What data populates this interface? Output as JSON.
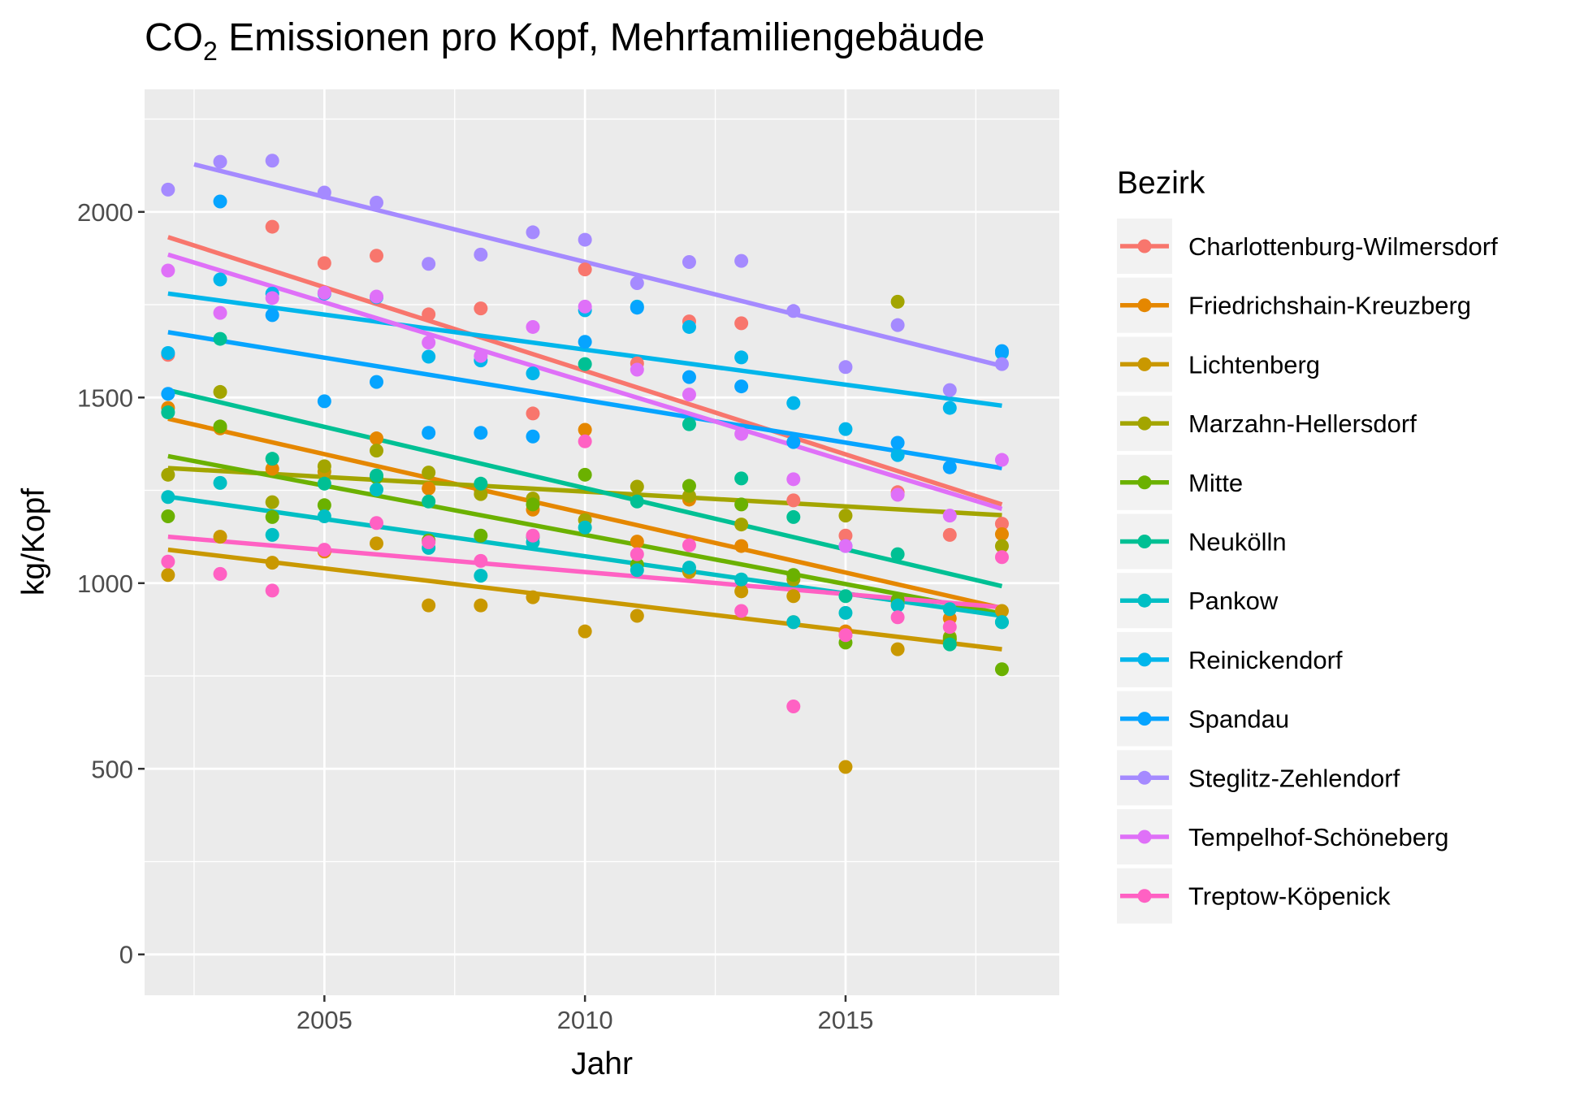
{
  "chart_data": {
    "type": "scatter",
    "title_main": "CO",
    "title_sub": "2",
    "title_rest": " Emissionen pro Kopf, Mehrfamiliengebäude",
    "xlabel": "Jahr",
    "ylabel": "kg/Kopf",
    "xlim": [
      2001.55,
      2019.1
    ],
    "ylim": [
      -110,
      2330
    ],
    "xticks": [
      2005,
      2010,
      2015
    ],
    "yticks": [
      0,
      500,
      1000,
      1500,
      2000
    ],
    "grid": true,
    "legend_title": "Bezirk",
    "legend_position": "right",
    "series": [
      {
        "name": "Charlottenburg-Wilmersdorf",
        "color": "#F8766D",
        "fit": [
          [
            2002,
            1932
          ],
          [
            2018,
            1212
          ]
        ],
        "points": [
          [
            2002,
            1615
          ],
          [
            2004,
            1960
          ],
          [
            2005,
            1862
          ],
          [
            2006,
            1882
          ],
          [
            2007,
            1724
          ],
          [
            2008,
            1740
          ],
          [
            2009,
            1457
          ],
          [
            2010,
            1845
          ],
          [
            2011,
            1592
          ],
          [
            2012,
            1705
          ],
          [
            2013,
            1700
          ],
          [
            2014,
            1223
          ],
          [
            2015,
            1128
          ],
          [
            2016,
            1245
          ],
          [
            2017,
            1130
          ],
          [
            2018,
            1160
          ]
        ]
      },
      {
        "name": "Friedrichshain-Kreuzberg",
        "color": "#E58700",
        "fit": [
          [
            2002,
            1443
          ],
          [
            2018,
            933
          ]
        ],
        "points": [
          [
            2002,
            1472
          ],
          [
            2003,
            1417
          ],
          [
            2004,
            1308
          ],
          [
            2005,
            1085
          ],
          [
            2006,
            1390
          ],
          [
            2007,
            1255
          ],
          [
            2008,
            1250
          ],
          [
            2009,
            1198
          ],
          [
            2010,
            1413
          ],
          [
            2011,
            1112
          ],
          [
            2012,
            1225
          ],
          [
            2013,
            1100
          ],
          [
            2014,
            895
          ],
          [
            2015,
            870
          ],
          [
            2016,
            945
          ],
          [
            2017,
            905
          ],
          [
            2018,
            1132
          ]
        ]
      },
      {
        "name": "Lichtenberg",
        "color": "#C99800",
        "fit": [
          [
            2002,
            1090
          ],
          [
            2018,
            822
          ]
        ],
        "points": [
          [
            2002,
            1022
          ],
          [
            2003,
            1125
          ],
          [
            2004,
            1055
          ],
          [
            2005,
            1300
          ],
          [
            2006,
            1107
          ],
          [
            2007,
            940
          ],
          [
            2008,
            940
          ],
          [
            2009,
            962
          ],
          [
            2010,
            870
          ],
          [
            2011,
            912
          ],
          [
            2012,
            1030
          ],
          [
            2013,
            978
          ],
          [
            2014,
            965
          ],
          [
            2015,
            505
          ],
          [
            2016,
            822
          ],
          [
            2017,
            848
          ],
          [
            2018,
            925
          ]
        ]
      },
      {
        "name": "Marzahn-Hellersdorf",
        "color": "#A3A500",
        "fit": [
          [
            2002,
            1310
          ],
          [
            2018,
            1183
          ]
        ],
        "points": [
          [
            2002,
            1292
          ],
          [
            2003,
            1515
          ],
          [
            2004,
            1218
          ],
          [
            2005,
            1315
          ],
          [
            2006,
            1357
          ],
          [
            2007,
            1298
          ],
          [
            2008,
            1240
          ],
          [
            2009,
            1228
          ],
          [
            2010,
            1170
          ],
          [
            2011,
            1260
          ],
          [
            2012,
            1235
          ],
          [
            2013,
            1158
          ],
          [
            2014,
            1010
          ],
          [
            2015,
            1182
          ],
          [
            2016,
            1758
          ],
          [
            2017,
            855
          ],
          [
            2018,
            1100
          ]
        ]
      },
      {
        "name": "Mitte",
        "color": "#6BB100",
        "fit": [
          [
            2002,
            1342
          ],
          [
            2018,
            918
          ]
        ],
        "points": [
          [
            2002,
            1180
          ],
          [
            2003,
            1422
          ],
          [
            2004,
            1178
          ],
          [
            2005,
            1210
          ],
          [
            2006,
            1285
          ],
          [
            2007,
            1115
          ],
          [
            2008,
            1128
          ],
          [
            2009,
            1212
          ],
          [
            2010,
            1292
          ],
          [
            2011,
            1050
          ],
          [
            2012,
            1262
          ],
          [
            2013,
            1212
          ],
          [
            2014,
            1022
          ],
          [
            2015,
            840
          ],
          [
            2016,
            955
          ],
          [
            2017,
            850
          ],
          [
            2018,
            768
          ]
        ]
      },
      {
        "name": "Neukölln",
        "color": "#00C094",
        "fit": [
          [
            2002,
            1520
          ],
          [
            2018,
            992
          ]
        ],
        "points": [
          [
            2002,
            1460
          ],
          [
            2003,
            1658
          ],
          [
            2004,
            1335
          ],
          [
            2005,
            1268
          ],
          [
            2006,
            1290
          ],
          [
            2007,
            1220
          ],
          [
            2008,
            1268
          ],
          [
            2009,
            1125
          ],
          [
            2010,
            1590
          ],
          [
            2011,
            1220
          ],
          [
            2012,
            1428
          ],
          [
            2013,
            1282
          ],
          [
            2014,
            1178
          ],
          [
            2015,
            965
          ],
          [
            2016,
            1078
          ],
          [
            2017,
            835
          ],
          [
            2018,
            895
          ]
        ]
      },
      {
        "name": "Pankow",
        "color": "#00BFC4",
        "fit": [
          [
            2002,
            1233
          ],
          [
            2018,
            912
          ]
        ],
        "points": [
          [
            2002,
            1232
          ],
          [
            2003,
            1270
          ],
          [
            2004,
            1130
          ],
          [
            2005,
            1180
          ],
          [
            2006,
            1252
          ],
          [
            2007,
            1095
          ],
          [
            2008,
            1020
          ],
          [
            2009,
            1110
          ],
          [
            2010,
            1150
          ],
          [
            2011,
            1035
          ],
          [
            2012,
            1042
          ],
          [
            2013,
            1010
          ],
          [
            2014,
            895
          ],
          [
            2015,
            920
          ],
          [
            2016,
            940
          ],
          [
            2017,
            930
          ],
          [
            2018,
            895
          ]
        ]
      },
      {
        "name": "Reinickendorf",
        "color": "#00B6EB",
        "fit": [
          [
            2002,
            1780
          ],
          [
            2018,
            1478
          ]
        ],
        "points": [
          [
            2002,
            1620
          ],
          [
            2003,
            1818
          ],
          [
            2004,
            1780
          ],
          [
            2005,
            1780
          ],
          [
            2006,
            1770
          ],
          [
            2007,
            1610
          ],
          [
            2008,
            1600
          ],
          [
            2009,
            1565
          ],
          [
            2010,
            1735
          ],
          [
            2011,
            1745
          ],
          [
            2012,
            1690
          ],
          [
            2013,
            1608
          ],
          [
            2014,
            1485
          ],
          [
            2015,
            1415
          ],
          [
            2016,
            1345
          ],
          [
            2017,
            1472
          ],
          [
            2018,
            1620
          ]
        ]
      },
      {
        "name": "Spandau",
        "color": "#06A4FF",
        "fit": [
          [
            2002,
            1676
          ],
          [
            2018,
            1310
          ]
        ],
        "points": [
          [
            2002,
            1510
          ],
          [
            2003,
            2028
          ],
          [
            2004,
            1722
          ],
          [
            2005,
            1490
          ],
          [
            2006,
            1542
          ],
          [
            2007,
            1405
          ],
          [
            2008,
            1405
          ],
          [
            2009,
            1395
          ],
          [
            2010,
            1650
          ],
          [
            2011,
            1742
          ],
          [
            2012,
            1555
          ],
          [
            2013,
            1530
          ],
          [
            2014,
            1380
          ],
          [
            2015,
            1100
          ],
          [
            2016,
            1378
          ],
          [
            2017,
            1312
          ],
          [
            2018,
            1625
          ]
        ]
      },
      {
        "name": "Steglitz-Zehlendorf",
        "color": "#A58AFF",
        "fit": [
          [
            2002.5,
            2128
          ],
          [
            2018,
            1585
          ]
        ],
        "points": [
          [
            2002,
            2060
          ],
          [
            2003,
            2135
          ],
          [
            2004,
            2138
          ],
          [
            2005,
            2052
          ],
          [
            2006,
            2025
          ],
          [
            2007,
            1860
          ],
          [
            2008,
            1885
          ],
          [
            2009,
            1945
          ],
          [
            2010,
            1925
          ],
          [
            2011,
            1808
          ],
          [
            2012,
            1865
          ],
          [
            2013,
            1868
          ],
          [
            2014,
            1733
          ],
          [
            2015,
            1582
          ],
          [
            2016,
            1695
          ],
          [
            2017,
            1520
          ],
          [
            2018,
            1590
          ]
        ]
      },
      {
        "name": "Tempelhof-Schöneberg",
        "color": "#DF70F8",
        "fit": [
          [
            2002,
            1885
          ],
          [
            2018,
            1200
          ]
        ],
        "points": [
          [
            2002,
            1842
          ],
          [
            2003,
            1728
          ],
          [
            2004,
            1768
          ],
          [
            2005,
            1782
          ],
          [
            2006,
            1772
          ],
          [
            2007,
            1648
          ],
          [
            2008,
            1612
          ],
          [
            2009,
            1690
          ],
          [
            2010,
            1745
          ],
          [
            2011,
            1575
          ],
          [
            2012,
            1508
          ],
          [
            2013,
            1402
          ],
          [
            2014,
            1280
          ],
          [
            2015,
            1100
          ],
          [
            2016,
            1238
          ],
          [
            2017,
            1182
          ],
          [
            2018,
            1332
          ]
        ]
      },
      {
        "name": "Treptow-Köpenick",
        "color": "#FF61C3",
        "fit": [
          [
            2002,
            1125
          ],
          [
            2018,
            935
          ]
        ],
        "points": [
          [
            2002,
            1058
          ],
          [
            2003,
            1025
          ],
          [
            2004,
            980
          ],
          [
            2005,
            1090
          ],
          [
            2006,
            1162
          ],
          [
            2007,
            1110
          ],
          [
            2008,
            1060
          ],
          [
            2009,
            1128
          ],
          [
            2010,
            1382
          ],
          [
            2011,
            1078
          ],
          [
            2012,
            1102
          ],
          [
            2013,
            925
          ],
          [
            2014,
            668
          ],
          [
            2015,
            860
          ],
          [
            2016,
            908
          ],
          [
            2017,
            882
          ],
          [
            2018,
            1070
          ]
        ]
      }
    ]
  }
}
